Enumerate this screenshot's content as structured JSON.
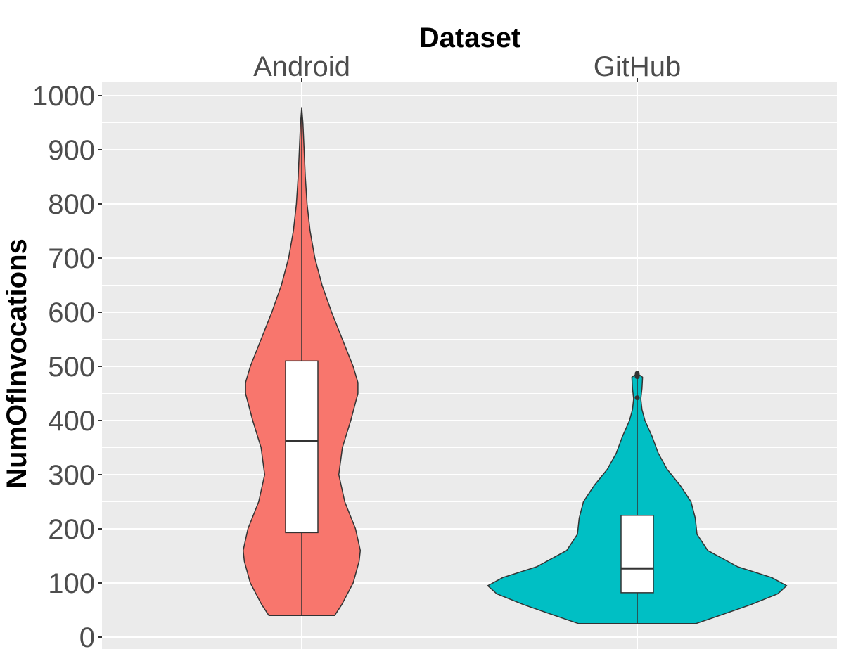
{
  "chart_data": {
    "type": "violin",
    "title": "",
    "xlabel": "Dataset",
    "ylabel": "NumOfInvocations",
    "x_axis_position": "top",
    "ylim": [
      0,
      1000
    ],
    "y_ticks": [
      0,
      100,
      200,
      300,
      400,
      500,
      600,
      700,
      800,
      900,
      1000
    ],
    "grid": true,
    "legend": "none",
    "categories": [
      "Android",
      "GitHub"
    ],
    "series": [
      {
        "category": "Android",
        "color": "#F8766D",
        "min": 40,
        "max": 978,
        "q1": 193,
        "median": 362,
        "q3": 510,
        "outliers": [],
        "density_half_width": [
          [
            40,
            0.55
          ],
          [
            60,
            0.67
          ],
          [
            100,
            0.86
          ],
          [
            140,
            0.96
          ],
          [
            160,
            0.98
          ],
          [
            200,
            0.9
          ],
          [
            250,
            0.72
          ],
          [
            300,
            0.62
          ],
          [
            350,
            0.68
          ],
          [
            400,
            0.82
          ],
          [
            450,
            0.94
          ],
          [
            470,
            0.94
          ],
          [
            500,
            0.86
          ],
          [
            550,
            0.68
          ],
          [
            600,
            0.5
          ],
          [
            650,
            0.34
          ],
          [
            700,
            0.22
          ],
          [
            750,
            0.14
          ],
          [
            800,
            0.09
          ],
          [
            850,
            0.06
          ],
          [
            900,
            0.04
          ],
          [
            950,
            0.02
          ],
          [
            978,
            0.0
          ]
        ]
      },
      {
        "category": "GitHub",
        "color": "#00BFC4",
        "min": 25,
        "max": 487,
        "q1": 82,
        "median": 127,
        "q3": 225,
        "outliers": [
          442,
          481,
          487
        ],
        "density_half_width": [
          [
            25,
            0.98
          ],
          [
            40,
            1.38
          ],
          [
            60,
            1.9
          ],
          [
            80,
            2.35
          ],
          [
            95,
            2.5
          ],
          [
            110,
            2.25
          ],
          [
            130,
            1.68
          ],
          [
            160,
            1.18
          ],
          [
            190,
            1.0
          ],
          [
            220,
            0.97
          ],
          [
            250,
            0.9
          ],
          [
            280,
            0.72
          ],
          [
            310,
            0.5
          ],
          [
            340,
            0.35
          ],
          [
            370,
            0.25
          ],
          [
            400,
            0.13
          ],
          [
            420,
            0.08
          ],
          [
            440,
            0.06
          ],
          [
            460,
            0.08
          ],
          [
            480,
            0.09
          ],
          [
            487,
            0.0
          ]
        ]
      }
    ]
  }
}
